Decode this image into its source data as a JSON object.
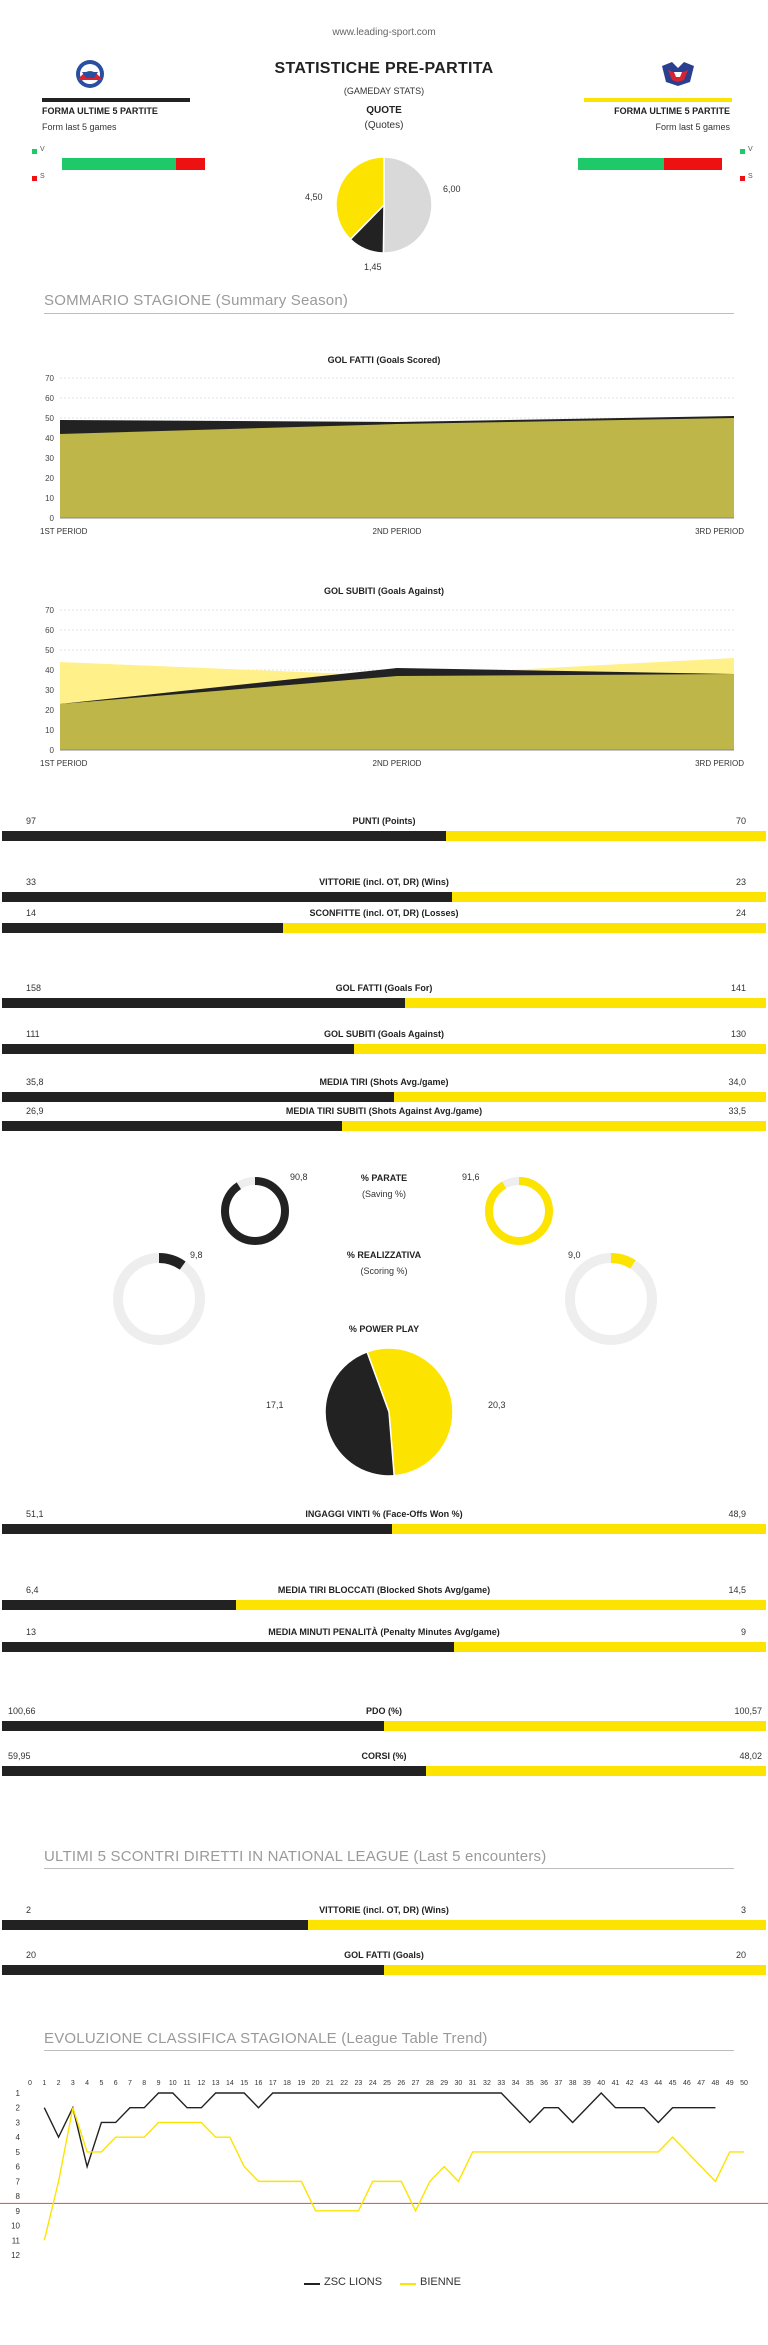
{
  "header": {
    "site": "www.leading-sport.com",
    "title": "STATISTICHE PRE-PARTITA",
    "subtitle": "(GAMEDAY STATS)",
    "quote_title": "QUOTE",
    "quote_subtitle": "(Quotes)"
  },
  "quotes": {
    "home": "4,50",
    "draw": "1,45",
    "away": "6,00",
    "values": [
      4.5,
      1.45,
      6.0
    ],
    "colors": [
      "#fde400",
      "#222222",
      "#d9d9d9"
    ]
  },
  "form": {
    "title": "FORMA ULTIME 5 PARTITE",
    "subtitle": "Form last 5 games",
    "win_label": "V",
    "loss_label": "S",
    "home_wins_fraction": 0.8,
    "away_wins_fraction": 0.6,
    "win_color": "#1ec96a",
    "loss_color": "#ee1111"
  },
  "teams": {
    "home": {
      "name": "ZSC LIONS",
      "logo": "zsc-lions-logo",
      "color": "#222222"
    },
    "away": {
      "name": "BIENNE",
      "logo": "bienne-logo",
      "color": "#fde400"
    }
  },
  "summary_heading": "SOMMARIO STAGIONE (Summary Season)",
  "h2h_heading": "ULTIMI 5 SCONTRI DIRETTI IN NATIONAL LEAGUE (Last 5 encounters)",
  "trend_heading": "EVOLUZIONE CLASSIFICA STAGIONALE (League Table Trend)",
  "chart_data": [
    {
      "type": "area",
      "title": "GOL FATTI (Goals Scored)",
      "categories": [
        "1ST PERIOD",
        "2ND PERIOD",
        "3RD PERIOD"
      ],
      "yticks": [
        0,
        10,
        20,
        30,
        40,
        50,
        60,
        70
      ],
      "ylim": [
        0,
        70
      ],
      "series": [
        {
          "name": "ZSC LIONS",
          "values": [
            49,
            48,
            51
          ],
          "color": "#222222"
        },
        {
          "name": "BIENNE",
          "values": [
            42,
            47,
            50
          ],
          "color": "#bfb64a"
        }
      ]
    },
    {
      "type": "area",
      "title": "GOL SUBITI (Goals Against)",
      "categories": [
        "1ST PERIOD",
        "2ND PERIOD",
        "3RD PERIOD"
      ],
      "yticks": [
        0,
        10,
        20,
        30,
        40,
        50,
        60,
        70
      ],
      "ylim": [
        0,
        70
      ],
      "series": [
        {
          "name": "BIENNE",
          "values": [
            44,
            37,
            46
          ],
          "color": "#fff08a"
        },
        {
          "name": "ZSC LIONS",
          "values": [
            23,
            41,
            38
          ],
          "color": "#222222"
        },
        {
          "name": "overlap",
          "values": [
            23,
            37,
            38
          ],
          "color": "#bfb64a"
        }
      ]
    },
    {
      "type": "line",
      "title": "EVOLUZIONE CLASSIFICA STAGIONALE (League Table Trend)",
      "x_ticks": [
        0,
        1,
        2,
        3,
        4,
        5,
        6,
        7,
        8,
        9,
        10,
        11,
        12,
        13,
        14,
        15,
        16,
        17,
        18,
        19,
        20,
        21,
        22,
        23,
        24,
        25,
        26,
        27,
        28,
        29,
        30,
        31,
        32,
        33,
        34,
        35,
        36,
        37,
        38,
        39,
        40,
        41,
        42,
        43,
        44,
        45,
        46,
        47,
        48,
        49,
        50
      ],
      "y_ticks": [
        1,
        2,
        3,
        4,
        5,
        6,
        7,
        8,
        9,
        10,
        11,
        12
      ],
      "ylim": [
        0,
        12
      ],
      "red_line_at": 8.5,
      "series": [
        {
          "name": "ZSC LIONS",
          "color": "#222222",
          "values": [
            2,
            4,
            2,
            6,
            3,
            3,
            2,
            2,
            1,
            1,
            2,
            2,
            1,
            1,
            1,
            2,
            1,
            1,
            1,
            1,
            1,
            1,
            1,
            1,
            1,
            1,
            1,
            1,
            1,
            1,
            1,
            1,
            1,
            2,
            3,
            2,
            2,
            3,
            2,
            1,
            2,
            2,
            2,
            3,
            2,
            2,
            2,
            2
          ]
        },
        {
          "name": "BIENNE",
          "color": "#fde400",
          "values": [
            11,
            7,
            2,
            5,
            5,
            4,
            4,
            4,
            3,
            3,
            3,
            3,
            4,
            4,
            6,
            7,
            7,
            7,
            7,
            9,
            9,
            9,
            9,
            7,
            7,
            7,
            9,
            7,
            6,
            7,
            5,
            5,
            5,
            5,
            5,
            5,
            5,
            5,
            5,
            5,
            5,
            5,
            5,
            5,
            4,
            5,
            6,
            7,
            5,
            5
          ]
        }
      ]
    }
  ],
  "stats": [
    {
      "label": "PUNTI (Points)",
      "home": "97",
      "away": "70",
      "split": 0.581
    },
    {
      "label": "VITTORIE (incl. OT, DR) (Wins)",
      "home": "33",
      "away": "23",
      "split": 0.589
    },
    {
      "label": "SCONFITTE (incl. OT, DR) (Losses)",
      "home": "14",
      "away": "24",
      "split": 0.368
    },
    {
      "label": "GOL FATTI (Goals For)",
      "home": "158",
      "away": "141",
      "split": 0.528
    },
    {
      "label": "GOL SUBITI (Goals Against)",
      "home": "111",
      "away": "130",
      "split": 0.461
    },
    {
      "label": "MEDIA TIRI (Shots Avg./game)",
      "home": "35,8",
      "away": "34,0",
      "split": 0.513
    },
    {
      "label": "MEDIA TIRI SUBITI (Shots Against Avg./game)",
      "home": "26,9",
      "away": "33,5",
      "split": 0.445
    },
    {
      "label": "INGAGGI VINTI % (Face-Offs Won %)",
      "home": "51,1",
      "away": "48,9",
      "split": 0.511
    },
    {
      "label": "MEDIA TIRI BLOCCATI (Blocked Shots Avg/game)",
      "home": "6,4",
      "away": "14,5",
      "split": 0.306
    },
    {
      "label": "MEDIA MINUTI PENALITÀ (Penalty Minutes Avg/game)",
      "home": "13",
      "away": "9",
      "split": 0.591
    },
    {
      "label": "PDO (%)",
      "home": "100,66",
      "away": "100,57",
      "split": 0.5
    },
    {
      "label": "CORSI (%)",
      "home": "59,95",
      "away": "48,02",
      "split": 0.555
    },
    {
      "label": "VITTORIE (incl. OT, DR) (Wins)",
      "home": "2",
      "away": "3",
      "split": 0.4
    },
    {
      "label": "GOL FATTI (Goals)",
      "home": "20",
      "away": "20",
      "split": 0.5
    }
  ],
  "rings": {
    "saving": {
      "title": "% PARATE",
      "sub": "(Saving %)",
      "home": "90,8",
      "away": "91,6",
      "home_frac": 0.908,
      "away_frac": 0.916
    },
    "scoring": {
      "title": "% REALIZZATIVA",
      "sub": "(Scoring %)",
      "home": "9,8",
      "away": "9,0",
      "home_frac": 0.098,
      "away_frac": 0.09
    },
    "powerplay": {
      "title": "% POWER PLAY",
      "home": "17,1",
      "away": "20,3",
      "values": [
        17.1,
        20.3
      ]
    }
  },
  "periods": [
    "1ST PERIOD",
    "2ND PERIOD",
    "3RD PERIOD"
  ]
}
